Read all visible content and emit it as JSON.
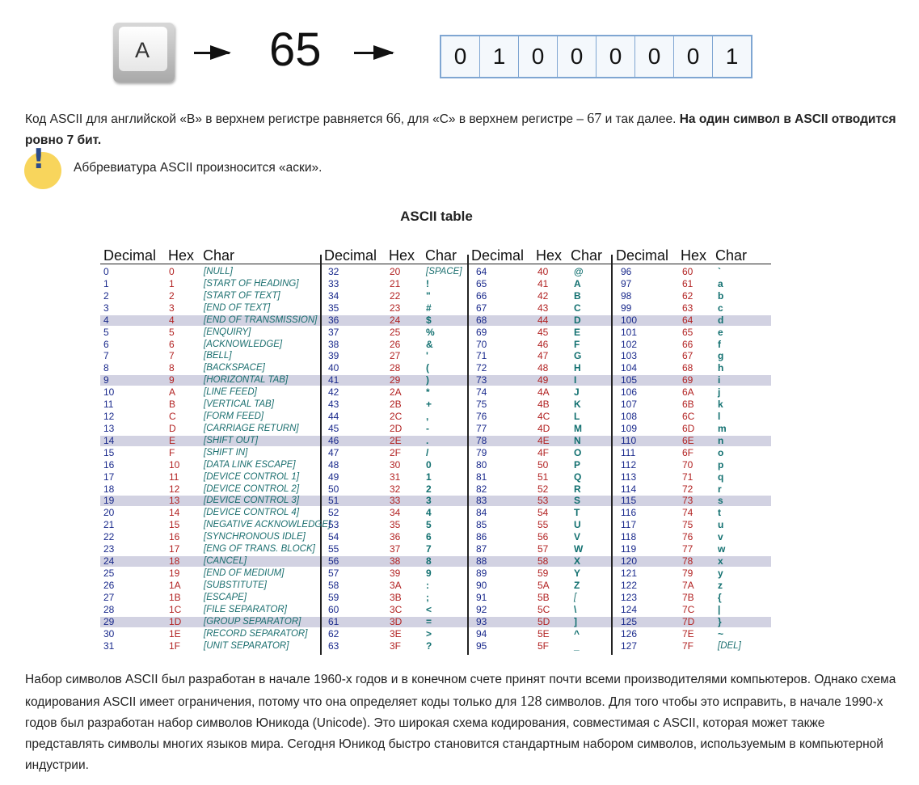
{
  "diagram": {
    "key_label": "A",
    "decimal": "65",
    "bits": [
      "0",
      "1",
      "0",
      "0",
      "0",
      "0",
      "0",
      "1"
    ],
    "arrow_icon": "right-arrow-icon"
  },
  "para1": {
    "t1": "Код ASCII для английской «B» в верхнем регистре равняется ",
    "n1": "66",
    "t2": ", для «C» в верхнем регистре – ",
    "n2": "67",
    "t3": " и так далее. ",
    "bold": "На один символ в ASCII отводится ровно 7 бит."
  },
  "tip": {
    "icon": "exclamation-icon",
    "text": "Аббревиатура ASCII произносится «аски»."
  },
  "table_title": "ASCII table",
  "ascii": {
    "headers": [
      "Decimal",
      "Hex",
      "Char"
    ],
    "colors": {
      "decimal": "#1a2a8c",
      "hex": "#b22222",
      "char": "#1b6f6f",
      "stripe": "#d2d2e2"
    },
    "striped_rows": [
      4,
      9,
      14,
      19,
      24,
      29
    ],
    "col1": [
      [
        "0",
        "0",
        "[NULL]"
      ],
      [
        "1",
        "1",
        "[START OF HEADING]"
      ],
      [
        "2",
        "2",
        "[START OF TEXT]"
      ],
      [
        "3",
        "3",
        "[END OF TEXT]"
      ],
      [
        "4",
        "4",
        "[END OF TRANSMISSION]"
      ],
      [
        "5",
        "5",
        "[ENQUIRY]"
      ],
      [
        "6",
        "6",
        "[ACKNOWLEDGE]"
      ],
      [
        "7",
        "7",
        "[BELL]"
      ],
      [
        "8",
        "8",
        "[BACKSPACE]"
      ],
      [
        "9",
        "9",
        "[HORIZONTAL TAB]"
      ],
      [
        "10",
        "A",
        "[LINE FEED]"
      ],
      [
        "11",
        "B",
        "[VERTICAL TAB]"
      ],
      [
        "12",
        "C",
        "[FORM FEED]"
      ],
      [
        "13",
        "D",
        "[CARRIAGE RETURN]"
      ],
      [
        "14",
        "E",
        "[SHIFT OUT]"
      ],
      [
        "15",
        "F",
        "[SHIFT IN]"
      ],
      [
        "16",
        "10",
        "[DATA LINK ESCAPE]"
      ],
      [
        "17",
        "11",
        "[DEVICE CONTROL 1]"
      ],
      [
        "18",
        "12",
        "[DEVICE CONTROL 2]"
      ],
      [
        "19",
        "13",
        "[DEVICE CONTROL 3]"
      ],
      [
        "20",
        "14",
        "[DEVICE CONTROL 4]"
      ],
      [
        "21",
        "15",
        "[NEGATIVE ACKNOWLEDGE]"
      ],
      [
        "22",
        "16",
        "[SYNCHRONOUS IDLE]"
      ],
      [
        "23",
        "17",
        "[ENG OF TRANS. BLOCK]"
      ],
      [
        "24",
        "18",
        "[CANCEL]"
      ],
      [
        "25",
        "19",
        "[END OF MEDIUM]"
      ],
      [
        "26",
        "1A",
        "[SUBSTITUTE]"
      ],
      [
        "27",
        "1B",
        "[ESCAPE]"
      ],
      [
        "28",
        "1C",
        "[FILE SEPARATOR]"
      ],
      [
        "29",
        "1D",
        "[GROUP SEPARATOR]"
      ],
      [
        "30",
        "1E",
        "[RECORD SEPARATOR]"
      ],
      [
        "31",
        "1F",
        "[UNIT SEPARATOR]"
      ]
    ],
    "col2": [
      [
        "32",
        "20",
        "[SPACE]"
      ],
      [
        "33",
        "21",
        "!"
      ],
      [
        "34",
        "22",
        "\""
      ],
      [
        "35",
        "23",
        "#"
      ],
      [
        "36",
        "24",
        "$"
      ],
      [
        "37",
        "25",
        "%"
      ],
      [
        "38",
        "26",
        "&"
      ],
      [
        "39",
        "27",
        "'"
      ],
      [
        "40",
        "28",
        "("
      ],
      [
        "41",
        "29",
        ")"
      ],
      [
        "42",
        "2A",
        "*"
      ],
      [
        "43",
        "2B",
        "+"
      ],
      [
        "44",
        "2C",
        ","
      ],
      [
        "45",
        "2D",
        "-"
      ],
      [
        "46",
        "2E",
        "."
      ],
      [
        "47",
        "2F",
        "/"
      ],
      [
        "48",
        "30",
        "0"
      ],
      [
        "49",
        "31",
        "1"
      ],
      [
        "50",
        "32",
        "2"
      ],
      [
        "51",
        "33",
        "3"
      ],
      [
        "52",
        "34",
        "4"
      ],
      [
        "53",
        "35",
        "5"
      ],
      [
        "54",
        "36",
        "6"
      ],
      [
        "55",
        "37",
        "7"
      ],
      [
        "56",
        "38",
        "8"
      ],
      [
        "57",
        "39",
        "9"
      ],
      [
        "58",
        "3A",
        ":"
      ],
      [
        "59",
        "3B",
        ";"
      ],
      [
        "60",
        "3C",
        "<"
      ],
      [
        "61",
        "3D",
        "="
      ],
      [
        "62",
        "3E",
        ">"
      ],
      [
        "63",
        "3F",
        "?"
      ]
    ],
    "col3": [
      [
        "64",
        "40",
        "@"
      ],
      [
        "65",
        "41",
        "A"
      ],
      [
        "66",
        "42",
        "B"
      ],
      [
        "67",
        "43",
        "C"
      ],
      [
        "68",
        "44",
        "D"
      ],
      [
        "69",
        "45",
        "E"
      ],
      [
        "70",
        "46",
        "F"
      ],
      [
        "71",
        "47",
        "G"
      ],
      [
        "72",
        "48",
        "H"
      ],
      [
        "73",
        "49",
        "I"
      ],
      [
        "74",
        "4A",
        "J"
      ],
      [
        "75",
        "4B",
        "K"
      ],
      [
        "76",
        "4C",
        "L"
      ],
      [
        "77",
        "4D",
        "M"
      ],
      [
        "78",
        "4E",
        "N"
      ],
      [
        "79",
        "4F",
        "O"
      ],
      [
        "80",
        "50",
        "P"
      ],
      [
        "81",
        "51",
        "Q"
      ],
      [
        "82",
        "52",
        "R"
      ],
      [
        "83",
        "53",
        "S"
      ],
      [
        "84",
        "54",
        "T"
      ],
      [
        "85",
        "55",
        "U"
      ],
      [
        "86",
        "56",
        "V"
      ],
      [
        "87",
        "57",
        "W"
      ],
      [
        "88",
        "58",
        "X"
      ],
      [
        "89",
        "59",
        "Y"
      ],
      [
        "90",
        "5A",
        "Z"
      ],
      [
        "91",
        "5B",
        "["
      ],
      [
        "92",
        "5C",
        "\\"
      ],
      [
        "93",
        "5D",
        "]"
      ],
      [
        "94",
        "5E",
        "^"
      ],
      [
        "95",
        "5F",
        "_"
      ]
    ],
    "col4": [
      [
        "96",
        "60",
        "`"
      ],
      [
        "97",
        "61",
        "a"
      ],
      [
        "98",
        "62",
        "b"
      ],
      [
        "99",
        "63",
        "c"
      ],
      [
        "100",
        "64",
        "d"
      ],
      [
        "101",
        "65",
        "e"
      ],
      [
        "102",
        "66",
        "f"
      ],
      [
        "103",
        "67",
        "g"
      ],
      [
        "104",
        "68",
        "h"
      ],
      [
        "105",
        "69",
        "i"
      ],
      [
        "106",
        "6A",
        "j"
      ],
      [
        "107",
        "6B",
        "k"
      ],
      [
        "108",
        "6C",
        "l"
      ],
      [
        "109",
        "6D",
        "m"
      ],
      [
        "110",
        "6E",
        "n"
      ],
      [
        "111",
        "6F",
        "o"
      ],
      [
        "112",
        "70",
        "p"
      ],
      [
        "113",
        "71",
        "q"
      ],
      [
        "114",
        "72",
        "r"
      ],
      [
        "115",
        "73",
        "s"
      ],
      [
        "116",
        "74",
        "t"
      ],
      [
        "117",
        "75",
        "u"
      ],
      [
        "118",
        "76",
        "v"
      ],
      [
        "119",
        "77",
        "w"
      ],
      [
        "120",
        "78",
        "x"
      ],
      [
        "121",
        "79",
        "y"
      ],
      [
        "122",
        "7A",
        "z"
      ],
      [
        "123",
        "7B",
        "{"
      ],
      [
        "124",
        "7C",
        "|"
      ],
      [
        "125",
        "7D",
        "}"
      ],
      [
        "126",
        "7E",
        "~"
      ],
      [
        "127",
        "7F",
        "[DEL]"
      ]
    ]
  },
  "para2": {
    "t1": "Набор символов ASCII был разработан в начале 1960-х годов и в конечном счете принят почти всеми производителями компьютеров. Однако схема кодирования ASCII имеет ограничения, потому что она определяет коды только для ",
    "n1": "128",
    "t2": " символов. Для того чтобы это исправить, в начале 1990-х годов был разработан набор символов Юникода (Unicode). Это широкая схема кодирования, совместимая с ASCII, которая может также представлять символы многих языков мира. Сегодня Юникод быстро становится стандартным набором символов, используемым в компьютерной индустрии."
  }
}
